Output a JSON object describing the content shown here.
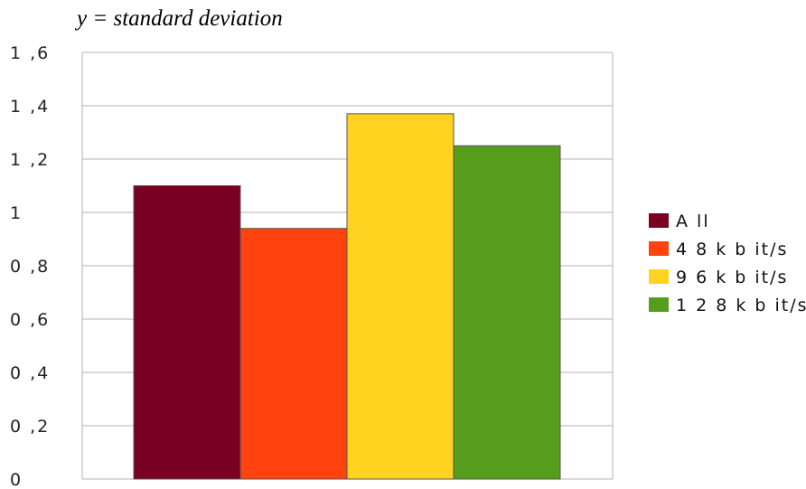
{
  "chart_data": {
    "type": "bar",
    "title": "",
    "ylabel": "y = standard deviation",
    "xlabel": "",
    "categories": [
      ""
    ],
    "series": [
      {
        "name": "A ll",
        "values": [
          1.1
        ],
        "color": "#7a0021"
      },
      {
        "name": "4 8  k b it/s",
        "values": [
          0.94
        ],
        "color": "#ff420e"
      },
      {
        "name": "9 6  k b it/s",
        "values": [
          1.37
        ],
        "color": "#ffd320"
      },
      {
        "name": "1 2 8  k b it/s",
        "values": [
          1.25
        ],
        "color": "#579d1c"
      }
    ],
    "ylim": [
      0,
      1.6
    ],
    "yticks": [
      {
        "value": 0,
        "label": "0"
      },
      {
        "value": 0.2,
        "label": "0 ,2"
      },
      {
        "value": 0.4,
        "label": "0 ,4"
      },
      {
        "value": 0.6,
        "label": "0 ,6"
      },
      {
        "value": 0.8,
        "label": "0 ,8"
      },
      {
        "value": 1.0,
        "label": "1"
      },
      {
        "value": 1.2,
        "label": "1 ,2"
      },
      {
        "value": 1.4,
        "label": "1 ,4"
      },
      {
        "value": 1.6,
        "label": "1 ,6"
      }
    ],
    "grid": true,
    "legend_position": "right",
    "gridline_color": "#b3b3b3",
    "bar_edge_color": "#555555"
  }
}
